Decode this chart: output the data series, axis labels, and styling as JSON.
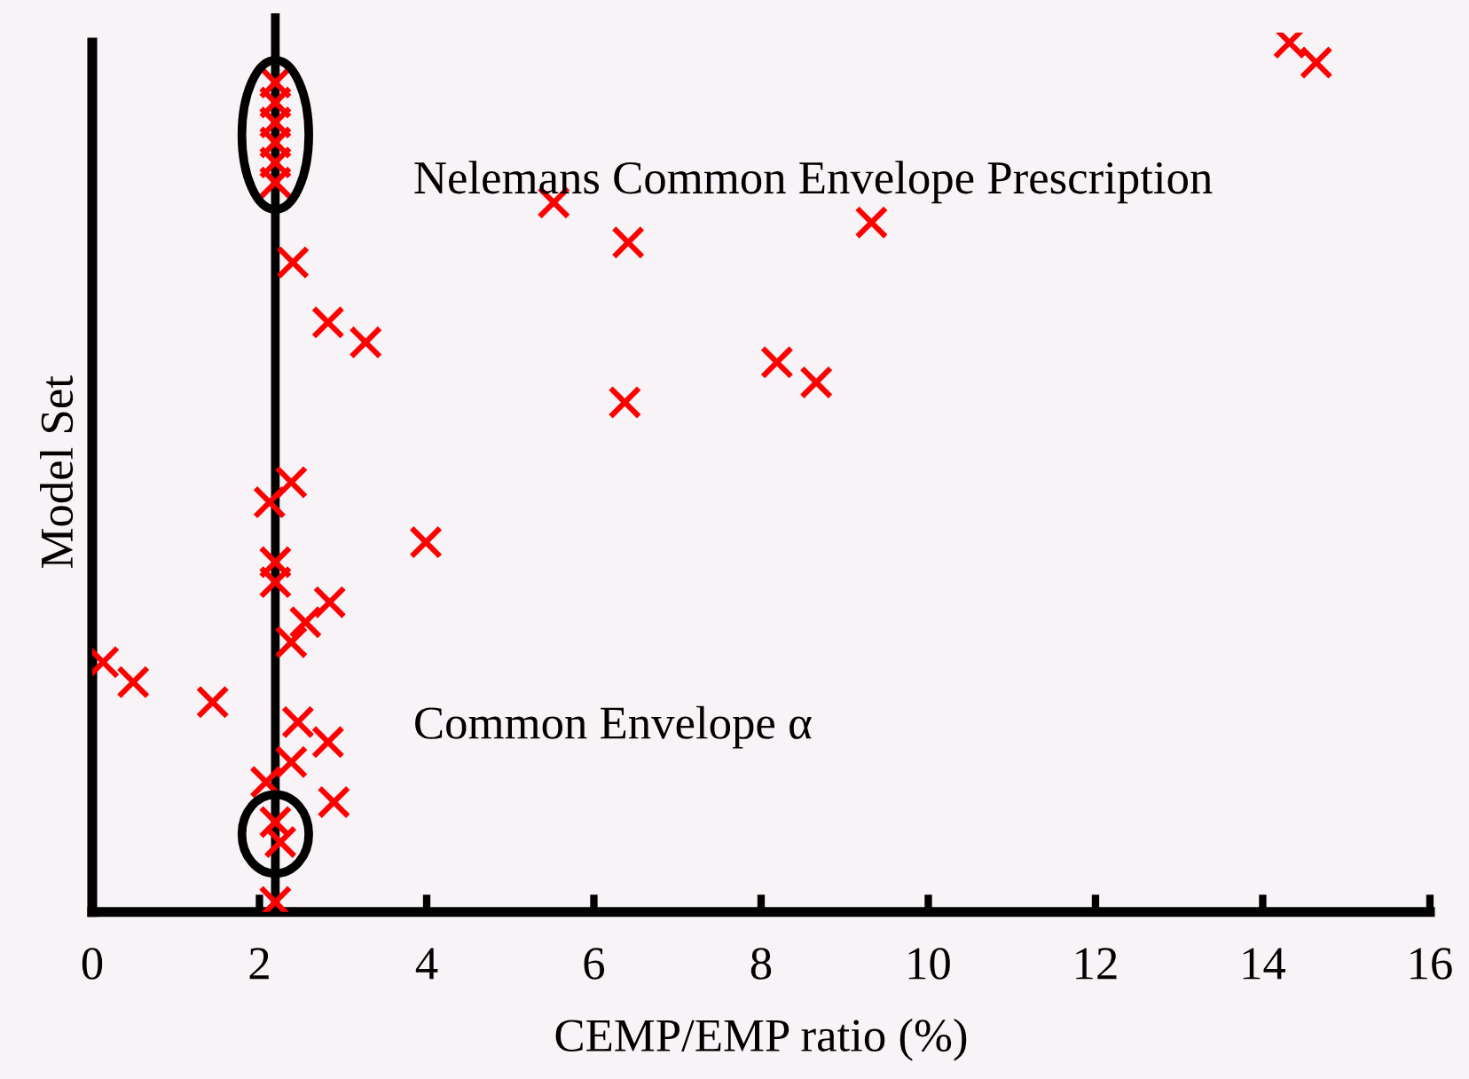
{
  "chart_data": {
    "type": "scatter",
    "orientation": "horizontal",
    "xlabel": "CEMP/EMP ratio (%)",
    "ylabel": "Model Set",
    "xlim": [
      0,
      16
    ],
    "xticks": [
      0,
      2,
      4,
      6,
      8,
      10,
      12,
      14,
      16
    ],
    "marker": "cross",
    "tick_labels": "x",
    "grid": false,
    "categories": [
      null,
      null,
      null,
      null,
      null,
      null,
      null,
      null,
      null,
      null,
      null,
      null,
      null,
      null,
      null,
      null,
      null,
      null,
      null,
      null,
      null,
      null,
      null,
      null,
      null,
      null,
      null,
      null,
      null,
      null,
      null,
      null,
      null,
      null,
      null,
      null,
      null,
      null,
      null,
      null,
      null,
      null,
      null,
      null
    ],
    "ref_lines": [
      {
        "axis": "x",
        "value": 2.19,
        "color": "#000000"
      }
    ],
    "annotations": [
      "Nelemans Common Envelope Prescription",
      "Common Envelope α"
    ],
    "series": [
      {
        "color": "#ff0000",
        "values": [
          14.32,
          14.64,
          2.19,
          2.19,
          2.19,
          2.19,
          2.19,
          2.19,
          5.52,
          9.32,
          6.41,
          2.4,
          null,
          null,
          2.82,
          3.27,
          8.19,
          8.66,
          6.37,
          null,
          null,
          null,
          2.38,
          2.12,
          null,
          3.99,
          2.19,
          2.19,
          2.84,
          2.55,
          2.38,
          0.13,
          0.49,
          1.44,
          2.46,
          2.82,
          2.38,
          2.08,
          2.89,
          2.19,
          2.25,
          null,
          null,
          2.19
        ]
      }
    ]
  }
}
